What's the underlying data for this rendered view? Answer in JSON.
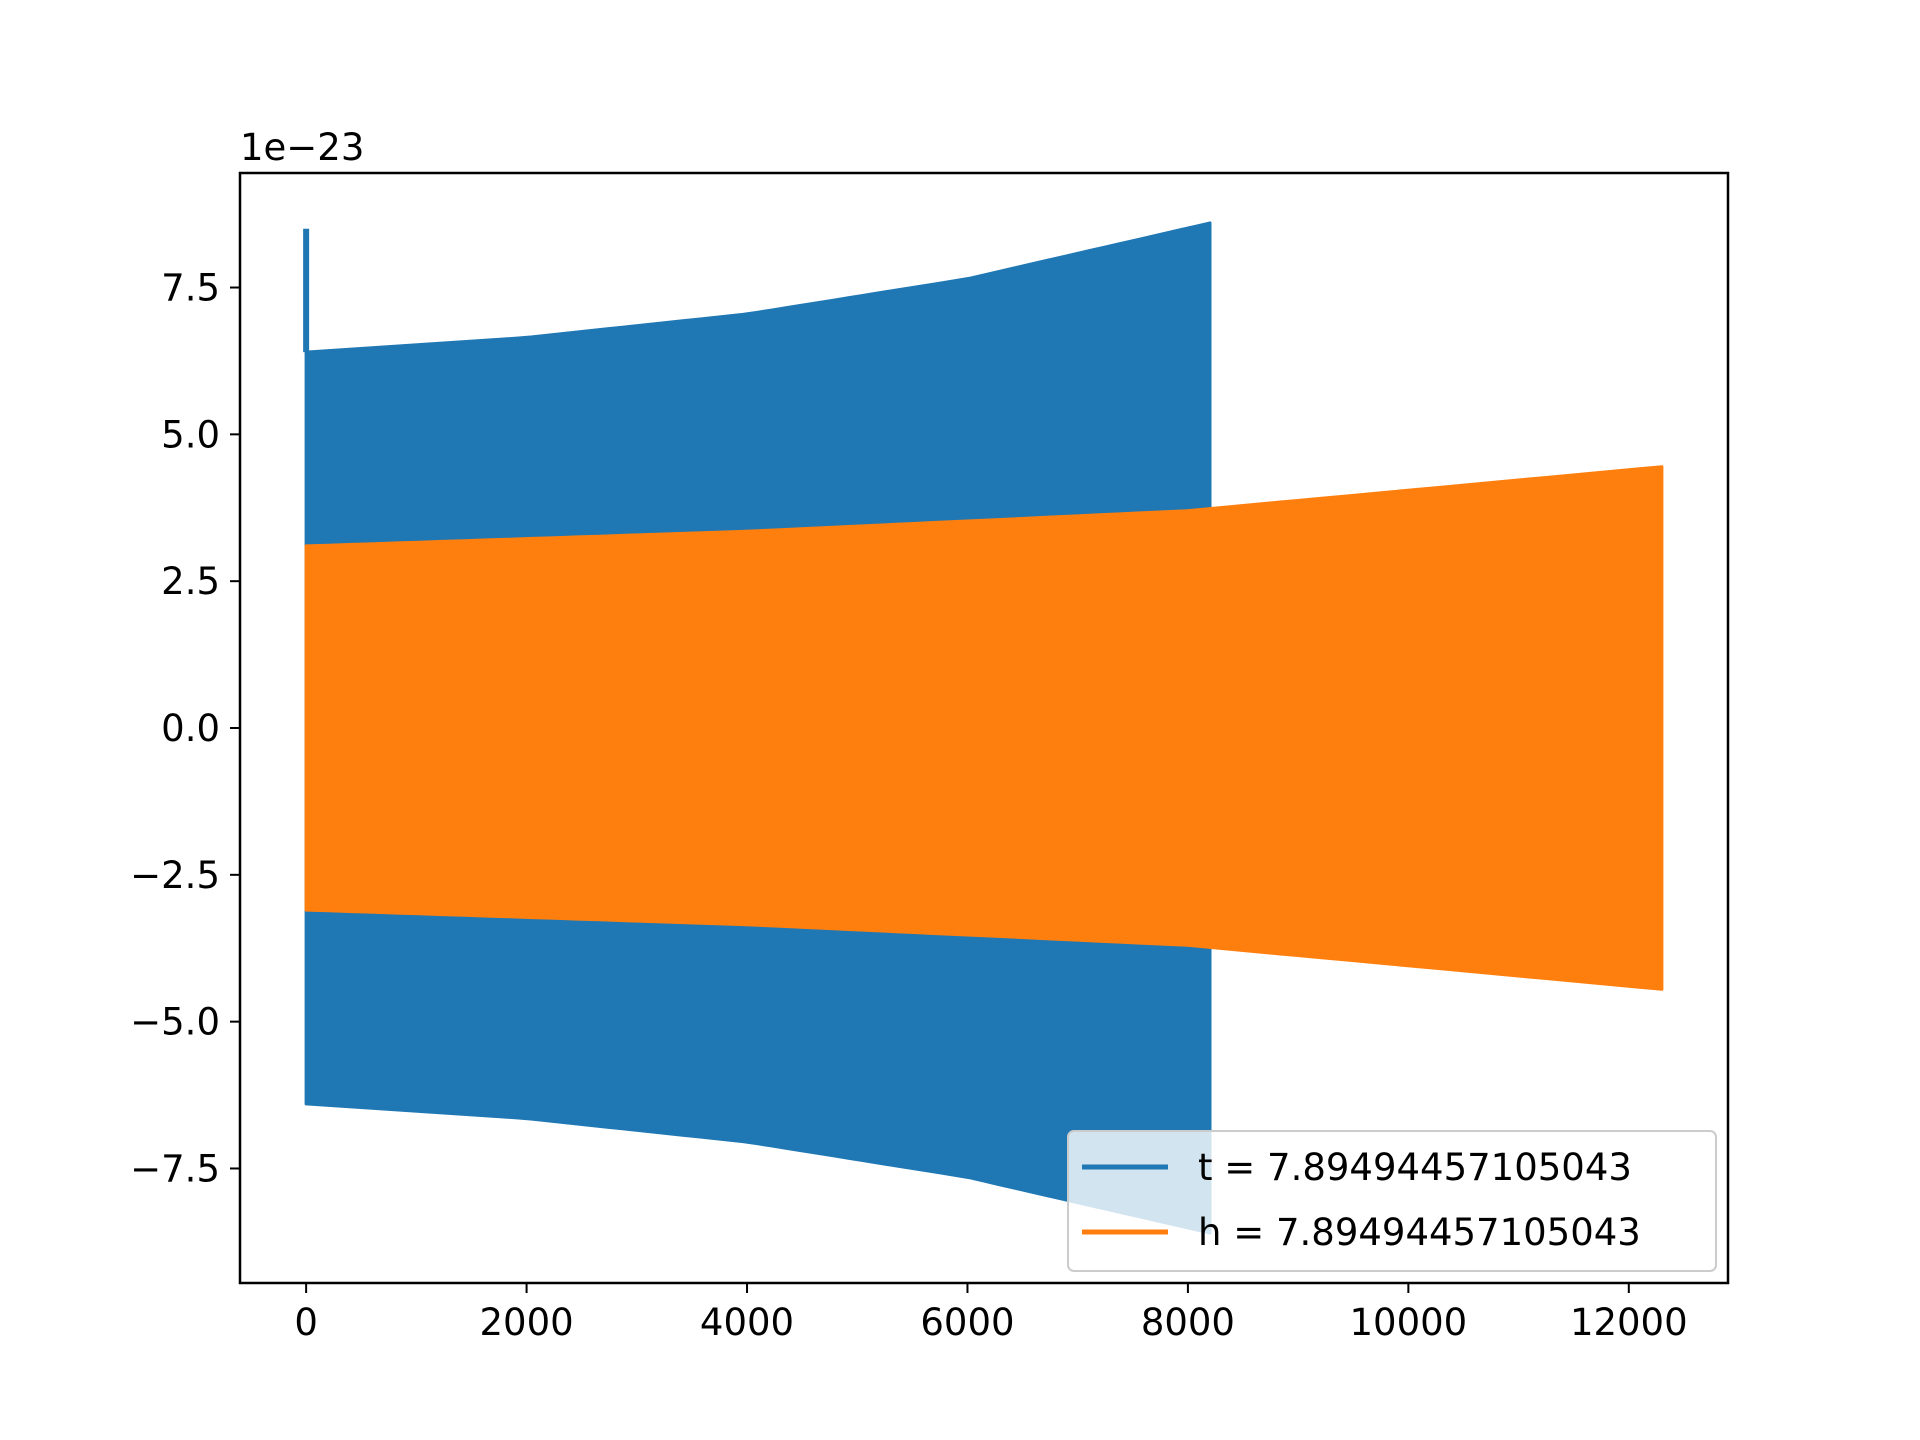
{
  "chart_data": {
    "type": "line",
    "title": "",
    "xlabel": "",
    "ylabel": "",
    "y_offset_label": "1e−23",
    "y_scale_exponent": -23,
    "xlim": [
      -600,
      12900
    ],
    "ylim": [
      -9.45,
      9.45
    ],
    "x_ticks": [
      0,
      2000,
      4000,
      6000,
      8000,
      10000,
      12000
    ],
    "x_tick_labels": [
      "0",
      "2000",
      "4000",
      "6000",
      "8000",
      "10000",
      "12000"
    ],
    "y_ticks": [
      -7.5,
      -5.0,
      -2.5,
      0.0,
      2.5,
      5.0,
      7.5
    ],
    "y_tick_labels": [
      "−7.5",
      "−5.0",
      "−2.5",
      "0.0",
      "2.5",
      "5.0",
      "7.5"
    ],
    "grid": false,
    "legend_position": "lower-right",
    "series": [
      {
        "name": "t = 7.89494457105043",
        "color": "#1f77b4",
        "x_start": 0,
        "x_end": 8200,
        "initial_spike": 8.5,
        "upper_envelope": [
          [
            0,
            6.4
          ],
          [
            2000,
            6.65
          ],
          [
            4000,
            7.05
          ],
          [
            6000,
            7.65
          ],
          [
            8200,
            8.6
          ]
        ],
        "lower_envelope": [
          [
            0,
            -6.4
          ],
          [
            2000,
            -6.65
          ],
          [
            4000,
            -7.05
          ],
          [
            6000,
            -7.65
          ],
          [
            8200,
            -8.6
          ]
        ]
      },
      {
        "name": "h = 7.89494457105043",
        "color": "#ff7f0e",
        "x_start": 0,
        "x_end": 12300,
        "upper_envelope": [
          [
            0,
            3.1
          ],
          [
            4000,
            3.35
          ],
          [
            8000,
            3.7
          ],
          [
            12300,
            4.45
          ]
        ],
        "lower_envelope": [
          [
            0,
            -3.1
          ],
          [
            4000,
            -3.35
          ],
          [
            8000,
            -3.7
          ],
          [
            12300,
            -4.45
          ]
        ]
      }
    ]
  }
}
